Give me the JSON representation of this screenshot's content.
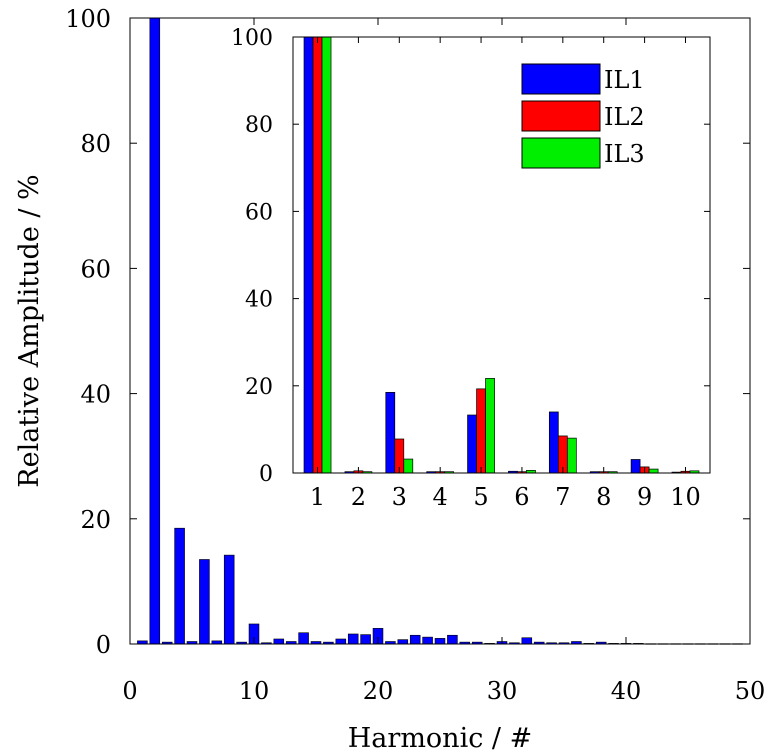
{
  "chart_data": [
    {
      "type": "bar",
      "xlabel": "Harmonic / #",
      "ylabel": "Relative Amplitude / %",
      "xlim": [
        0,
        50
      ],
      "ylim": [
        0,
        100
      ],
      "xticks": [
        0,
        10,
        20,
        30,
        40,
        50
      ],
      "yticks": [
        0,
        20,
        40,
        60,
        80,
        100
      ],
      "grid": false,
      "series": [
        {
          "color": "#0000ff",
          "x": [
            1,
            2,
            3,
            4,
            5,
            6,
            7,
            8,
            9,
            10,
            11,
            12,
            13,
            14,
            15,
            16,
            17,
            18,
            19,
            20,
            21,
            22,
            23,
            24,
            25,
            26,
            27,
            28,
            29,
            30,
            31,
            32,
            33,
            34,
            35,
            36,
            37,
            38,
            39,
            40,
            41,
            42,
            43,
            44,
            45,
            46,
            47,
            48,
            49
          ],
          "values": [
            0.5,
            100,
            0.3,
            18.5,
            0.4,
            13.5,
            0.5,
            14.2,
            0.3,
            3.2,
            0.2,
            0.8,
            0.4,
            1.8,
            0.4,
            0.3,
            0.8,
            1.6,
            1.5,
            2.5,
            0.4,
            0.7,
            1.4,
            1.1,
            0.9,
            1.4,
            0.3,
            0.3,
            0.1,
            0.4,
            0.2,
            1.0,
            0.3,
            0.2,
            0.2,
            0.4,
            0.1,
            0.3,
            0.1,
            0.1,
            0.1,
            0.05,
            0.05,
            0.05,
            0.05,
            0.05,
            0.05,
            0.05,
            0.05
          ]
        }
      ]
    },
    {
      "type": "bar",
      "inset": true,
      "categories": [
        "1",
        "2",
        "3",
        "4",
        "5",
        "6",
        "7",
        "8",
        "9",
        "10"
      ],
      "ylim": [
        0,
        100
      ],
      "yticks": [
        0,
        20,
        40,
        60,
        80,
        100
      ],
      "legend_position": "top-right",
      "series": [
        {
          "name": "IL1",
          "color": "#0000ff",
          "values": [
            100,
            0.3,
            18.5,
            0.3,
            13.3,
            0.4,
            14.0,
            0.3,
            3.1,
            0.2
          ]
        },
        {
          "name": "IL2",
          "color": "#ff0000",
          "values": [
            100,
            0.5,
            7.8,
            0.3,
            19.3,
            0.3,
            8.5,
            0.3,
            1.4,
            0.4
          ]
        },
        {
          "name": "IL3",
          "color": "#00ee00",
          "values": [
            100,
            0.3,
            3.2,
            0.3,
            21.7,
            0.6,
            8.0,
            0.3,
            0.9,
            0.5
          ]
        }
      ]
    }
  ]
}
